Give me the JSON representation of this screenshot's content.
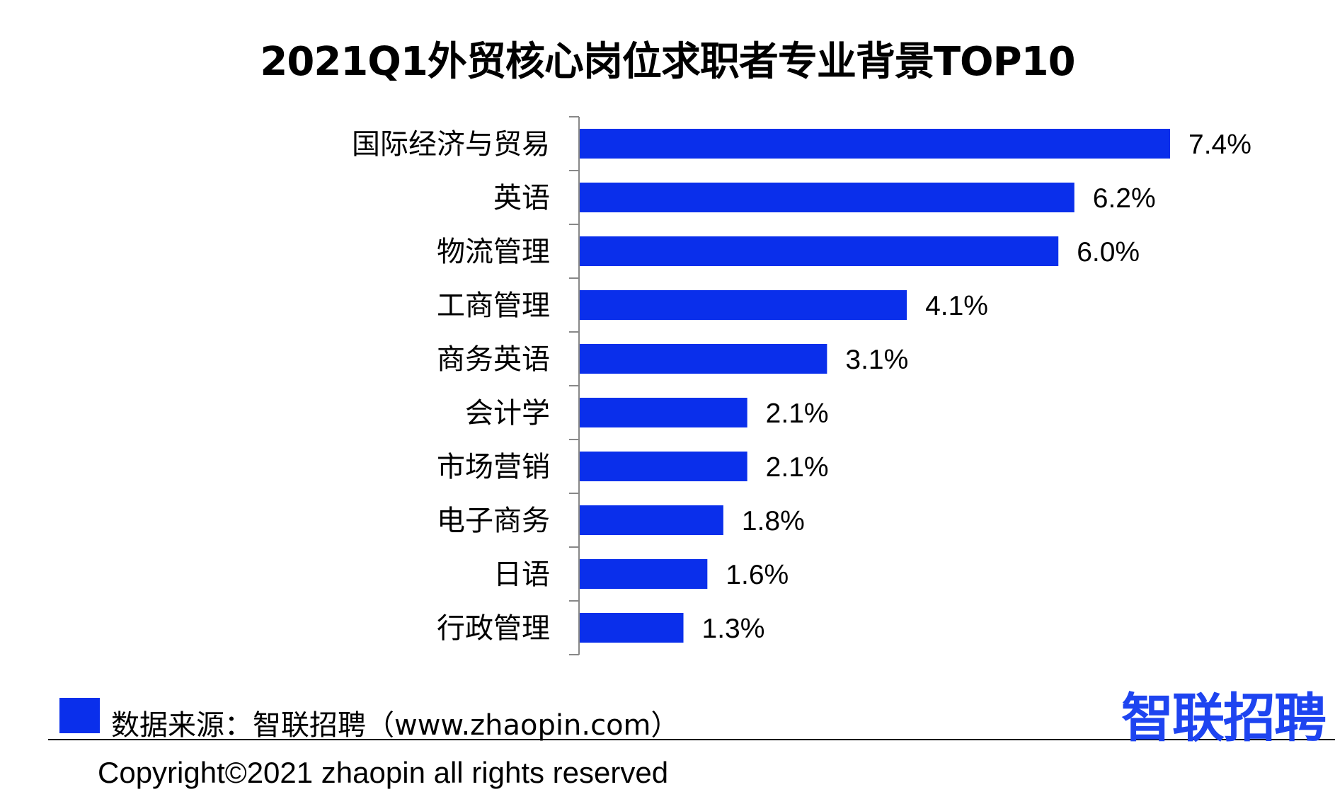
{
  "colors": {
    "bar": "#0A2FEB",
    "brand": "#1E44F0",
    "axis": "#888888"
  },
  "chart_data": {
    "type": "bar",
    "orientation": "horizontal",
    "title": "2021Q1外贸核心岗位求职者专业背景TOP10",
    "categories": [
      "国际经济与贸易",
      "英语",
      "物流管理",
      "工商管理",
      "商务英语",
      "会计学",
      "市场营销",
      "电子商务",
      "日语",
      "行政管理"
    ],
    "values": [
      7.4,
      6.2,
      6.0,
      4.1,
      3.1,
      2.1,
      2.1,
      1.8,
      1.6,
      1.3
    ],
    "value_labels": [
      "7.4%",
      "6.2%",
      "6.0%",
      "4.1%",
      "3.1%",
      "2.1%",
      "2.1%",
      "1.8%",
      "1.6%",
      "1.3%"
    ],
    "unit": "%",
    "xlim": [
      0,
      7.4
    ],
    "grid": false,
    "legend": "bottom-left"
  },
  "footer": {
    "source_text": "数据来源：智联招聘（www.zhaopin.com）",
    "copyright": "Copyright©2021 zhaopin all rights reserved",
    "brand_logo_text": "智联招聘"
  }
}
